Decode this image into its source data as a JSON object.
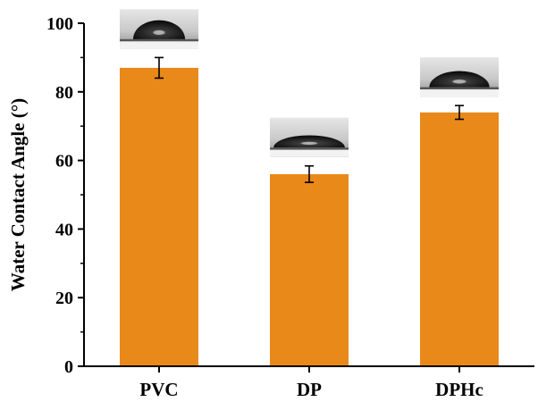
{
  "chart_data": {
    "type": "bar",
    "categories": [
      "PVC",
      "DP",
      "DPHc"
    ],
    "values": [
      87,
      56,
      74
    ],
    "errors": [
      3,
      2.4,
      2
    ],
    "ylabel": "Water Contact Angle (°)",
    "xlabel": "",
    "ylim": [
      0,
      100
    ],
    "yticks": [
      "0",
      "20",
      "40",
      "60",
      "80",
      "100"
    ],
    "bar_color": "#E8891A",
    "inset_images": [
      "water-droplet-photo",
      "water-droplet-photo",
      "water-droplet-photo"
    ]
  }
}
